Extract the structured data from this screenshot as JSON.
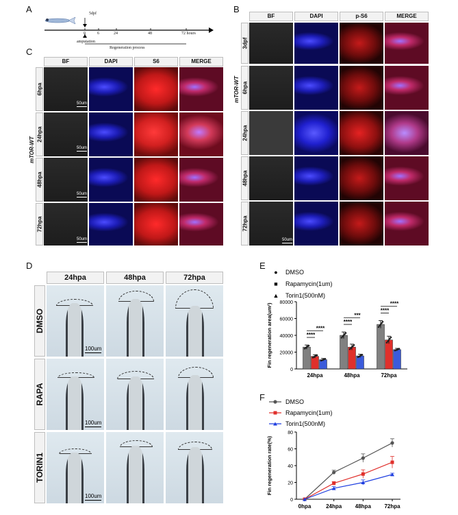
{
  "panels": {
    "A": "A",
    "B": "B",
    "C": "C",
    "D": "D",
    "E": "E",
    "F": "F"
  },
  "timeline": {
    "top_label": "5dpf",
    "ticks": [
      "0",
      "6",
      "24",
      "48",
      "72 hours"
    ],
    "amputation": "amputation",
    "process": "Regeneration process"
  },
  "panelB": {
    "side_label": "mTOR-WT",
    "columns": [
      "BF",
      "DAPI",
      "p-S6",
      "MERGE"
    ],
    "rows": [
      "3dpf",
      "6hpa",
      "24hpa",
      "48hpa",
      "72hpa"
    ],
    "scale": "50um"
  },
  "panelC": {
    "side_label": "mTOR-WT",
    "columns": [
      "BF",
      "DAPI",
      "S6",
      "MERGE"
    ],
    "rows": [
      "6hpa",
      "24hpa",
      "48hpa",
      "72hpa"
    ],
    "scale": "50um"
  },
  "panelD": {
    "columns": [
      "24hpa",
      "48hpa",
      "72hpa"
    ],
    "rows": [
      "DMSO",
      "RAPA",
      "TORIN1"
    ],
    "scale": "100um"
  },
  "chart_data": [
    {
      "type": "bar",
      "panel": "E",
      "categories": [
        "24hpa",
        "48hpa",
        "72hpa"
      ],
      "series": [
        {
          "name": "DMSO",
          "values": [
            26000,
            40000,
            53000
          ],
          "errors": [
            2500,
            4000,
            4500
          ],
          "color": "#808080"
        },
        {
          "name": "Rapamycin(1um)",
          "values": [
            15000,
            26000,
            34500
          ],
          "errors": [
            2000,
            3500,
            4500
          ],
          "color": "#e0302c"
        },
        {
          "name": "Torin1(500nM)",
          "values": [
            11000,
            15500,
            23000
          ],
          "errors": [
            1500,
            2000,
            1500
          ],
          "color": "#3b5bdb"
        }
      ],
      "ylabel": "Fin regeneration area(um²)",
      "yticks": [
        "0",
        "20000",
        "40000",
        "60000",
        "80000"
      ],
      "ylim": [
        0,
        80000
      ],
      "significance": [
        "****",
        "****",
        "****",
        "***",
        "****",
        "****"
      ],
      "legend_markers": [
        "●",
        "■",
        "▲"
      ]
    },
    {
      "type": "line",
      "panel": "F",
      "x": [
        "0hpa",
        "24hpa",
        "48hpa",
        "72hpa"
      ],
      "series": [
        {
          "name": "DMSO",
          "values": [
            0,
            32,
            49,
            67
          ],
          "errors": [
            0,
            2.5,
            5,
            5
          ],
          "color": "#555555"
        },
        {
          "name": "Rapamycin(1um)",
          "values": [
            0,
            19,
            30,
            44
          ],
          "errors": [
            0,
            2,
            5,
            7
          ],
          "color": "#e0302c"
        },
        {
          "name": "Torin1(500nM)",
          "values": [
            0,
            13,
            20,
            29.5
          ],
          "errors": [
            0,
            2,
            3,
            1.5
          ],
          "color": "#1f3fe0"
        }
      ],
      "ylabel": "Fin regeneration rate(%)",
      "yticks": [
        "0",
        "20",
        "40",
        "60",
        "80"
      ],
      "ylim": [
        0,
        80
      ]
    }
  ]
}
